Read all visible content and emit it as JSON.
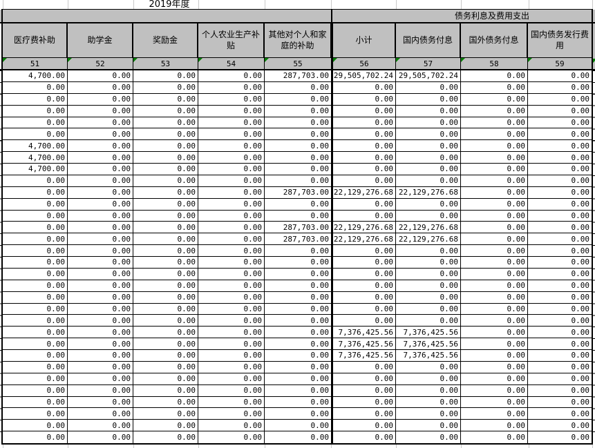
{
  "sheet": {
    "year_title": "2019年度",
    "group_header": "债务利息及费用支出",
    "columns": [
      {
        "label": "医疗费补助",
        "code": "51"
      },
      {
        "label": "助学金",
        "code": "52"
      },
      {
        "label": "奖励金",
        "code": "53"
      },
      {
        "label": "个人农业生产补贴",
        "code": "54"
      },
      {
        "label": "其他对个人和家庭的补助",
        "code": "55"
      },
      {
        "label": "小计",
        "code": "56"
      },
      {
        "label": "国内债务付息",
        "code": "57"
      },
      {
        "label": "国外债务付息",
        "code": "58"
      },
      {
        "label": "国内债务发行费用",
        "code": "59"
      }
    ],
    "rows": [
      [
        "4,700.00",
        "0.00",
        "0.00",
        "0.00",
        "287,703.00",
        "29,505,702.24",
        "29,505,702.24",
        "0.00",
        "0.00"
      ],
      [
        "0.00",
        "0.00",
        "0.00",
        "0.00",
        "0.00",
        "0.00",
        "0.00",
        "0.00",
        "0.00"
      ],
      [
        "0.00",
        "0.00",
        "0.00",
        "0.00",
        "0.00",
        "0.00",
        "0.00",
        "0.00",
        "0.00"
      ],
      [
        "0.00",
        "0.00",
        "0.00",
        "0.00",
        "0.00",
        "0.00",
        "0.00",
        "0.00",
        "0.00"
      ],
      [
        "0.00",
        "0.00",
        "0.00",
        "0.00",
        "0.00",
        "0.00",
        "0.00",
        "0.00",
        "0.00"
      ],
      [
        "0.00",
        "0.00",
        "0.00",
        "0.00",
        "0.00",
        "0.00",
        "0.00",
        "0.00",
        "0.00"
      ],
      [
        "4,700.00",
        "0.00",
        "0.00",
        "0.00",
        "0.00",
        "0.00",
        "0.00",
        "0.00",
        "0.00"
      ],
      [
        "4,700.00",
        "0.00",
        "0.00",
        "0.00",
        "0.00",
        "0.00",
        "0.00",
        "0.00",
        "0.00"
      ],
      [
        "4,700.00",
        "0.00",
        "0.00",
        "0.00",
        "0.00",
        "0.00",
        "0.00",
        "0.00",
        "0.00"
      ],
      [
        "0.00",
        "0.00",
        "0.00",
        "0.00",
        "0.00",
        "0.00",
        "0.00",
        "0.00",
        "0.00"
      ],
      [
        "0.00",
        "0.00",
        "0.00",
        "0.00",
        "287,703.00",
        "22,129,276.68",
        "22,129,276.68",
        "0.00",
        "0.00"
      ],
      [
        "0.00",
        "0.00",
        "0.00",
        "0.00",
        "0.00",
        "0.00",
        "0.00",
        "0.00",
        "0.00"
      ],
      [
        "0.00",
        "0.00",
        "0.00",
        "0.00",
        "0.00",
        "0.00",
        "0.00",
        "0.00",
        "0.00"
      ],
      [
        "0.00",
        "0.00",
        "0.00",
        "0.00",
        "287,703.00",
        "22,129,276.68",
        "22,129,276.68",
        "0.00",
        "0.00"
      ],
      [
        "0.00",
        "0.00",
        "0.00",
        "0.00",
        "287,703.00",
        "22,129,276.68",
        "22,129,276.68",
        "0.00",
        "0.00"
      ],
      [
        "0.00",
        "0.00",
        "0.00",
        "0.00",
        "0.00",
        "0.00",
        "0.00",
        "0.00",
        "0.00"
      ],
      [
        "0.00",
        "0.00",
        "0.00",
        "0.00",
        "0.00",
        "0.00",
        "0.00",
        "0.00",
        "0.00"
      ],
      [
        "0.00",
        "0.00",
        "0.00",
        "0.00",
        "0.00",
        "0.00",
        "0.00",
        "0.00",
        "0.00"
      ],
      [
        "0.00",
        "0.00",
        "0.00",
        "0.00",
        "0.00",
        "0.00",
        "0.00",
        "0.00",
        "0.00"
      ],
      [
        "0.00",
        "0.00",
        "0.00",
        "0.00",
        "0.00",
        "0.00",
        "0.00",
        "0.00",
        "0.00"
      ],
      [
        "0.00",
        "0.00",
        "0.00",
        "0.00",
        "0.00",
        "0.00",
        "0.00",
        "0.00",
        "0.00"
      ],
      [
        "0.00",
        "0.00",
        "0.00",
        "0.00",
        "0.00",
        "0.00",
        "0.00",
        "0.00",
        "0.00"
      ],
      [
        "0.00",
        "0.00",
        "0.00",
        "0.00",
        "0.00",
        "7,376,425.56",
        "7,376,425.56",
        "0.00",
        "0.00"
      ],
      [
        "0.00",
        "0.00",
        "0.00",
        "0.00",
        "0.00",
        "7,376,425.56",
        "7,376,425.56",
        "0.00",
        "0.00"
      ],
      [
        "0.00",
        "0.00",
        "0.00",
        "0.00",
        "0.00",
        "7,376,425.56",
        "7,376,425.56",
        "0.00",
        "0.00"
      ],
      [
        "0.00",
        "0.00",
        "0.00",
        "0.00",
        "0.00",
        "0.00",
        "0.00",
        "0.00",
        "0.00"
      ],
      [
        "0.00",
        "0.00",
        "0.00",
        "0.00",
        "0.00",
        "0.00",
        "0.00",
        "0.00",
        "0.00"
      ],
      [
        "0.00",
        "0.00",
        "0.00",
        "0.00",
        "0.00",
        "0.00",
        "0.00",
        "0.00",
        "0.00"
      ],
      [
        "0.00",
        "0.00",
        "0.00",
        "0.00",
        "0.00",
        "0.00",
        "0.00",
        "0.00",
        "0.00"
      ],
      [
        "0.00",
        "0.00",
        "0.00",
        "0.00",
        "0.00",
        "0.00",
        "0.00",
        "0.00",
        "0.00"
      ],
      [
        "0.00",
        "0.00",
        "0.00",
        "0.00",
        "0.00",
        "0.00",
        "0.00",
        "0.00",
        "0.00"
      ],
      [
        "0.00",
        "0.00",
        "0.00",
        "0.00",
        "0.00",
        "0.00",
        "0.00",
        "0.00",
        "0.00"
      ]
    ],
    "colors": {
      "header_bg": "#c0c0c0",
      "border": "#000000",
      "gridline": "#c9c9c9",
      "flag_green": "#008000"
    }
  }
}
